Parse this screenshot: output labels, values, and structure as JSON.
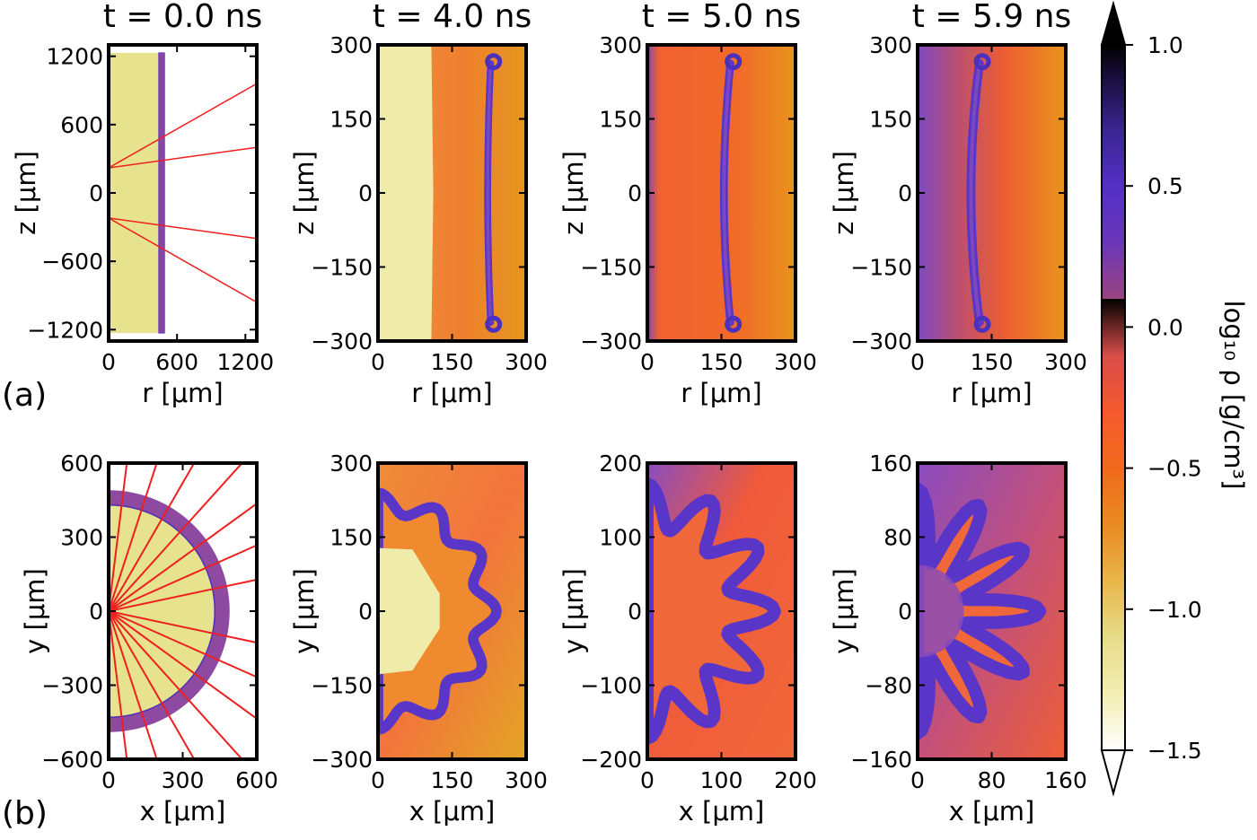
{
  "chart_data": [
    {
      "type": "heatmap",
      "panel": "row-a-1",
      "title": "t = 0.0 ns",
      "xlabel": "r [μm]",
      "ylabel": "z [μm]",
      "xlim": [
        0,
        1300
      ],
      "ylim": [
        -1300,
        1300
      ],
      "xticks": [
        0,
        600,
        1200
      ],
      "yticks": [
        -1200,
        -600,
        0,
        600,
        1200
      ],
      "x_tick_labels": [
        "0",
        "600",
        "1200"
      ],
      "y_tick_labels": [
        "−1200",
        "−600",
        "0",
        "600",
        "1200"
      ],
      "row_label": "(a)",
      "target": {
        "gas_fill_r_max": 440,
        "shell_r": [
          440,
          490
        ],
        "shell_z_max": 1230
      },
      "laser_beams": [
        {
          "from": [
            0,
            220
          ],
          "to": [
            1300,
            960
          ]
        },
        {
          "from": [
            0,
            220
          ],
          "to": [
            1300,
            400
          ]
        },
        {
          "from": [
            0,
            -220
          ],
          "to": [
            1300,
            -400
          ]
        },
        {
          "from": [
            0,
            -220
          ],
          "to": [
            1300,
            -960
          ]
        }
      ]
    },
    {
      "type": "heatmap",
      "panel": "row-a-2",
      "title": "t = 4.0 ns",
      "xlabel": "r [μm]",
      "ylabel": "z [μm]",
      "xlim": [
        0,
        300
      ],
      "ylim": [
        -300,
        300
      ],
      "xticks": [
        0,
        150,
        300
      ],
      "yticks": [
        -300,
        -150,
        0,
        150,
        300
      ],
      "x_tick_labels": [
        "0",
        "150",
        "300"
      ],
      "y_tick_labels": [
        "−300",
        "−150",
        "0",
        "150",
        "300"
      ],
      "shell": {
        "r_center": 222,
        "r_edge": 228,
        "thickness": 14,
        "z_extent": 262
      }
    },
    {
      "type": "heatmap",
      "panel": "row-a-3",
      "title": "t = 5.0 ns",
      "xlabel": "r [μm]",
      "ylabel": "z [μm]",
      "xlim": [
        0,
        300
      ],
      "ylim": [
        -300,
        300
      ],
      "xticks": [
        0,
        150,
        300
      ],
      "yticks": [
        -300,
        -150,
        0,
        150,
        300
      ],
      "x_tick_labels": [
        "0",
        "150",
        "300"
      ],
      "y_tick_labels": [
        "−300",
        "−150",
        "0",
        "150",
        "300"
      ],
      "shell": {
        "r_center": 155,
        "r_edge": 168,
        "thickness": 16,
        "z_extent": 262
      }
    },
    {
      "type": "heatmap",
      "panel": "row-a-4",
      "title": "t = 5.9 ns",
      "xlabel": "r [μm]",
      "ylabel": "z [μm]",
      "xlim": [
        0,
        300
      ],
      "ylim": [
        -300,
        300
      ],
      "xticks": [
        0,
        150,
        300
      ],
      "yticks": [
        -300,
        -150,
        0,
        150,
        300
      ],
      "x_tick_labels": [
        "0",
        "150",
        "300"
      ],
      "y_tick_labels": [
        "−300",
        "−150",
        "0",
        "150",
        "300"
      ],
      "shell": {
        "r_center": 108,
        "r_edge": 125,
        "thickness": 18,
        "z_extent": 262
      }
    },
    {
      "type": "heatmap",
      "panel": "row-b-1",
      "xlabel": "x [μm]",
      "ylabel": "y [μm]",
      "xlim": [
        0,
        600
      ],
      "ylim": [
        -600,
        600
      ],
      "xticks": [
        0,
        300,
        600
      ],
      "yticks": [
        -600,
        -300,
        0,
        300,
        600
      ],
      "x_tick_labels": [
        "0",
        "300",
        "600"
      ],
      "y_tick_labels": [
        "−600",
        "−300",
        "0",
        "300",
        "600"
      ],
      "row_label": "(b)",
      "target": {
        "gas_radius": 430,
        "shell_radius_outer": 490
      },
      "laser_beam_angles_deg": [
        83,
        72,
        60,
        48,
        36,
        24,
        12,
        -12,
        -24,
        -36,
        -48,
        -60,
        -72,
        -83
      ]
    },
    {
      "type": "heatmap",
      "panel": "row-b-2",
      "xlabel": "x [μm]",
      "ylabel": "y [μm]",
      "xlim": [
        0,
        300
      ],
      "ylim": [
        -300,
        300
      ],
      "xticks": [
        0,
        150,
        300
      ],
      "yticks": [
        -300,
        -150,
        0,
        150,
        300
      ],
      "x_tick_labels": [
        "0",
        "150",
        "300"
      ],
      "y_tick_labels": [
        "−300",
        "−150",
        "0",
        "150",
        "300"
      ],
      "shell": {
        "mean_radius": 220,
        "modulation": 20,
        "lobes": 12,
        "thickness": 14
      }
    },
    {
      "type": "heatmap",
      "panel": "row-b-3",
      "xlabel": "x [μm]",
      "ylabel": "y [μm]",
      "xlim": [
        0,
        200
      ],
      "ylim": [
        -200,
        200
      ],
      "xticks": [
        0,
        100,
        200
      ],
      "yticks": [
        -200,
        -100,
        0,
        100,
        200
      ],
      "x_tick_labels": [
        "0",
        "100",
        "200"
      ],
      "y_tick_labels": [
        "−200",
        "−100",
        "0",
        "100",
        "200"
      ],
      "shell": {
        "mean_radius": 142,
        "modulation": 30,
        "lobes": 12,
        "thickness": 12
      }
    },
    {
      "type": "heatmap",
      "panel": "row-b-4",
      "xlabel": "x [μm]",
      "ylabel": "y [μm]",
      "xlim": [
        0,
        160
      ],
      "ylim": [
        -160,
        160
      ],
      "xticks": [
        0,
        80,
        160
      ],
      "yticks": [
        -160,
        -80,
        0,
        80,
        160
      ],
      "x_tick_labels": [
        "0",
        "80",
        "160"
      ],
      "y_tick_labels": [
        "−160",
        "−80",
        "0",
        "80",
        "160"
      ],
      "shell": {
        "mean_radius": 92,
        "modulation": 40,
        "lobes": 12,
        "thickness": 10
      }
    }
  ],
  "colorbar": {
    "label": "log₁₀ ρ [g/cm³]",
    "vmin": -1.5,
    "vmax": 1.0,
    "ticks": [
      -1.5,
      -1.0,
      -0.5,
      0.0,
      0.5,
      1.0
    ],
    "tick_labels": [
      "−1.5",
      "−1.0",
      "−0.5",
      "0.0",
      "0.5",
      "1.0"
    ],
    "extend": "both",
    "colormap": [
      "#ffffff",
      "#f2eeb2",
      "#e6dc8a",
      "#e8b64a",
      "#e98a22",
      "#f06a1c",
      "#f55a2e",
      "#e4513f",
      "#b2486d",
      "#8040a0",
      "#5a33c8",
      "#4a30bb",
      "#2f1d6e",
      "#000000"
    ]
  }
}
